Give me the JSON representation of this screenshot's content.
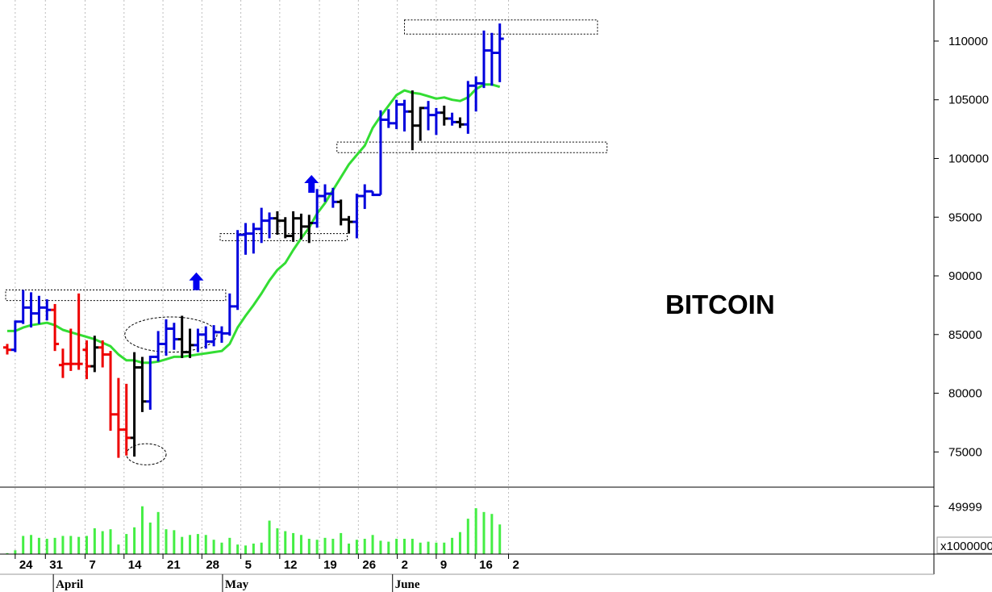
{
  "chart_data": {
    "type": "ohlc",
    "title": "BITCOIN",
    "price_axis": {
      "ticks": [
        "75000",
        "80000",
        "85000",
        "90000",
        "95000",
        "100000",
        "105000",
        "110000"
      ],
      "tick_values": [
        75000,
        80000,
        85000,
        90000,
        95000,
        100000,
        105000,
        110000
      ],
      "ylim": [
        72000,
        113500
      ]
    },
    "volume_axis": {
      "tick_label": "49999",
      "tick_value": 49999,
      "multiplier_label": "x1000000",
      "ylim": [
        0,
        70000
      ]
    },
    "x_axis": {
      "day_ticks": [
        {
          "label": "24",
          "index": 1
        },
        {
          "label": "31",
          "index": 4.8
        },
        {
          "label": "7",
          "index": 9.8
        },
        {
          "label": "14",
          "index": 14.7
        },
        {
          "label": "21",
          "index": 19.6
        },
        {
          "label": "28",
          "index": 24.5
        },
        {
          "label": "5",
          "index": 29.4
        },
        {
          "label": "12",
          "index": 34.3
        },
        {
          "label": "19",
          "index": 39.3
        },
        {
          "label": "26",
          "index": 44.2
        },
        {
          "label": "2",
          "index": 49.1
        },
        {
          "label": "9",
          "index": 54
        },
        {
          "label": "16",
          "index": 58.9
        },
        {
          "label": "2",
          "index": 63.1
        }
      ],
      "months": [
        {
          "label": "April",
          "index": 5.8
        },
        {
          "label": "May",
          "index": 27.1
        },
        {
          "label": "June",
          "index": 48.5
        }
      ],
      "index_range": [
        0,
        62.5
      ]
    },
    "series": [
      {
        "kind": "ohlc",
        "bars": [
          {
            "i": 0,
            "o": 83900,
            "h": 84200,
            "l": 83300,
            "c": 83700,
            "color": "red"
          },
          {
            "i": 1,
            "o": 83700,
            "h": 86200,
            "l": 83500,
            "c": 86100,
            "color": "blue"
          },
          {
            "i": 2,
            "o": 86100,
            "h": 88800,
            "l": 85900,
            "c": 87300,
            "color": "blue"
          },
          {
            "i": 3,
            "o": 87300,
            "h": 88600,
            "l": 85600,
            "c": 86800,
            "color": "blue"
          },
          {
            "i": 4,
            "o": 86800,
            "h": 88300,
            "l": 85900,
            "c": 87300,
            "color": "blue"
          },
          {
            "i": 5,
            "o": 87300,
            "h": 88000,
            "l": 86200,
            "c": 87100,
            "color": "blue"
          },
          {
            "i": 6,
            "o": 87100,
            "h": 87600,
            "l": 83600,
            "c": 84200,
            "color": "red"
          },
          {
            "i": 7,
            "o": 82400,
            "h": 83800,
            "l": 81300,
            "c": 82500,
            "color": "red"
          },
          {
            "i": 8,
            "o": 82500,
            "h": 85500,
            "l": 81900,
            "c": 82500,
            "color": "red"
          },
          {
            "i": 9,
            "o": 82500,
            "h": 88500,
            "l": 82000,
            "c": 82500,
            "color": "red"
          },
          {
            "i": 10,
            "o": 83700,
            "h": 84500,
            "l": 81200,
            "c": 82300,
            "color": "red"
          },
          {
            "i": 11,
            "o": 82300,
            "h": 84900,
            "l": 81800,
            "c": 83900,
            "color": "black"
          },
          {
            "i": 12,
            "o": 83900,
            "h": 84500,
            "l": 82200,
            "c": 83300,
            "color": "red"
          },
          {
            "i": 13,
            "o": 83300,
            "h": 83600,
            "l": 76800,
            "c": 78200,
            "color": "red"
          },
          {
            "i": 14,
            "o": 78200,
            "h": 81300,
            "l": 74500,
            "c": 76900,
            "color": "red"
          },
          {
            "i": 15,
            "o": 76900,
            "h": 80800,
            "l": 74700,
            "c": 76200,
            "color": "red"
          },
          {
            "i": 16,
            "o": 76200,
            "h": 83500,
            "l": 74600,
            "c": 82200,
            "color": "black"
          },
          {
            "i": 17,
            "o": 82200,
            "h": 83100,
            "l": 78400,
            "c": 79300,
            "color": "black"
          },
          {
            "i": 18,
            "o": 79300,
            "h": 83200,
            "l": 78600,
            "c": 83100,
            "color": "blue"
          },
          {
            "i": 19,
            "o": 83100,
            "h": 85300,
            "l": 82700,
            "c": 84200,
            "color": "blue"
          },
          {
            "i": 20,
            "o": 84200,
            "h": 86300,
            "l": 83200,
            "c": 85500,
            "color": "blue"
          },
          {
            "i": 21,
            "o": 85500,
            "h": 86000,
            "l": 83700,
            "c": 84600,
            "color": "blue"
          },
          {
            "i": 22,
            "o": 84600,
            "h": 86600,
            "l": 83000,
            "c": 83500,
            "color": "black"
          },
          {
            "i": 23,
            "o": 83500,
            "h": 85500,
            "l": 83000,
            "c": 84100,
            "color": "black"
          },
          {
            "i": 24,
            "o": 84100,
            "h": 85500,
            "l": 83500,
            "c": 85000,
            "color": "blue"
          },
          {
            "i": 25,
            "o": 85000,
            "h": 85700,
            "l": 83800,
            "c": 84400,
            "color": "blue"
          },
          {
            "i": 26,
            "o": 84400,
            "h": 85800,
            "l": 84000,
            "c": 85200,
            "color": "blue"
          },
          {
            "i": 27,
            "o": 85200,
            "h": 85700,
            "l": 84300,
            "c": 85100,
            "color": "blue"
          },
          {
            "i": 28,
            "o": 85100,
            "h": 88500,
            "l": 84900,
            "c": 87400,
            "color": "blue"
          },
          {
            "i": 29,
            "o": 87400,
            "h": 93900,
            "l": 87100,
            "c": 93500,
            "color": "blue"
          },
          {
            "i": 30,
            "o": 93500,
            "h": 94500,
            "l": 91800,
            "c": 93600,
            "color": "blue"
          },
          {
            "i": 31,
            "o": 93600,
            "h": 94500,
            "l": 91900,
            "c": 94000,
            "color": "blue"
          },
          {
            "i": 32,
            "o": 94000,
            "h": 95800,
            "l": 92800,
            "c": 94700,
            "color": "blue"
          },
          {
            "i": 33,
            "o": 94700,
            "h": 95400,
            "l": 93200,
            "c": 94900,
            "color": "blue"
          },
          {
            "i": 34,
            "o": 94900,
            "h": 95500,
            "l": 93500,
            "c": 94700,
            "color": "black"
          },
          {
            "i": 35,
            "o": 94700,
            "h": 95000,
            "l": 93200,
            "c": 93400,
            "color": "black"
          },
          {
            "i": 36,
            "o": 93400,
            "h": 95500,
            "l": 92900,
            "c": 94900,
            "color": "black"
          },
          {
            "i": 37,
            "o": 94900,
            "h": 95300,
            "l": 93100,
            "c": 94200,
            "color": "black"
          },
          {
            "i": 38,
            "o": 94200,
            "h": 95200,
            "l": 92800,
            "c": 94500,
            "color": "black"
          },
          {
            "i": 39,
            "o": 94500,
            "h": 97400,
            "l": 94100,
            "c": 96800,
            "color": "blue"
          },
          {
            "i": 40,
            "o": 96800,
            "h": 97800,
            "l": 96300,
            "c": 97000,
            "color": "blue"
          },
          {
            "i": 41,
            "o": 97000,
            "h": 97500,
            "l": 95800,
            "c": 96300,
            "color": "blue"
          },
          {
            "i": 42,
            "o": 96300,
            "h": 96500,
            "l": 94300,
            "c": 94800,
            "color": "black"
          },
          {
            "i": 43,
            "o": 94800,
            "h": 95100,
            "l": 93600,
            "c": 94600,
            "color": "black"
          },
          {
            "i": 44,
            "o": 94600,
            "h": 97000,
            "l": 93200,
            "c": 96800,
            "color": "blue"
          },
          {
            "i": 45,
            "o": 96800,
            "h": 97800,
            "l": 95700,
            "c": 97200,
            "color": "blue"
          },
          {
            "i": 46,
            "o": 97200,
            "h": 97200,
            "l": 96800,
            "c": 96900,
            "color": "blue"
          },
          {
            "i": 47,
            "o": 96900,
            "h": 104100,
            "l": 96900,
            "c": 103300,
            "color": "blue"
          },
          {
            "i": 48,
            "o": 103300,
            "h": 104200,
            "l": 102600,
            "c": 103000,
            "color": "blue"
          },
          {
            "i": 49,
            "o": 103000,
            "h": 105000,
            "l": 102500,
            "c": 104600,
            "color": "blue"
          },
          {
            "i": 50,
            "o": 104600,
            "h": 105000,
            "l": 102300,
            "c": 104000,
            "color": "blue"
          },
          {
            "i": 51,
            "o": 104000,
            "h": 105800,
            "l": 100700,
            "c": 102800,
            "color": "black"
          },
          {
            "i": 52,
            "o": 102800,
            "h": 104400,
            "l": 101500,
            "c": 104300,
            "color": "black"
          },
          {
            "i": 53,
            "o": 104300,
            "h": 104900,
            "l": 102400,
            "c": 103700,
            "color": "blue"
          },
          {
            "i": 54,
            "o": 103700,
            "h": 104300,
            "l": 102000,
            "c": 103900,
            "color": "blue"
          },
          {
            "i": 55,
            "o": 103900,
            "h": 104500,
            "l": 102800,
            "c": 103400,
            "color": "black"
          },
          {
            "i": 56,
            "o": 103400,
            "h": 103900,
            "l": 102800,
            "c": 103100,
            "color": "blue"
          },
          {
            "i": 57,
            "o": 103100,
            "h": 103500,
            "l": 102600,
            "c": 102900,
            "color": "black"
          },
          {
            "i": 58,
            "o": 102900,
            "h": 106600,
            "l": 102100,
            "c": 106200,
            "color": "blue"
          },
          {
            "i": 59,
            "o": 106200,
            "h": 107000,
            "l": 104000,
            "c": 106400,
            "color": "blue"
          },
          {
            "i": 60,
            "o": 106400,
            "h": 110900,
            "l": 106000,
            "c": 109200,
            "color": "blue"
          },
          {
            "i": 61,
            "o": 109200,
            "h": 110700,
            "l": 106200,
            "c": 109000,
            "color": "blue"
          },
          {
            "i": 62,
            "o": 109000,
            "h": 111500,
            "l": 106500,
            "c": 110200,
            "color": "blue"
          }
        ]
      },
      {
        "kind": "moving_average",
        "color": "#33dd33",
        "values": [
          85300,
          85300,
          85600,
          85800,
          85900,
          86000,
          85800,
          85400,
          85200,
          85000,
          84800,
          84600,
          84300,
          84000,
          83300,
          82800,
          82800,
          82600,
          82600,
          82700,
          82900,
          83100,
          83100,
          83200,
          83300,
          83400,
          83500,
          83600,
          84200,
          85600,
          86600,
          87500,
          88500,
          89600,
          90500,
          91100,
          92200,
          93200,
          94100,
          95300,
          96200,
          97300,
          98400,
          99500,
          100300,
          101100,
          102600,
          103600,
          104500,
          105400,
          105800,
          105600,
          105500,
          105300,
          105100,
          105200,
          105000,
          104900,
          105200,
          105900,
          106300,
          106300,
          106100
        ]
      }
    ],
    "volume": [
      1000,
      4000,
      19000,
      20000,
      17000,
      16000,
      17000,
      19000,
      19000,
      18000,
      19000,
      27000,
      24000,
      26000,
      10000,
      21000,
      28000,
      50000,
      33000,
      44000,
      26000,
      25000,
      18000,
      20000,
      21000,
      20000,
      15000,
      12000,
      17000,
      10000,
      9000,
      11000,
      12000,
      35000,
      27000,
      24000,
      22000,
      20000,
      16000,
      15000,
      17000,
      16000,
      22000,
      11000,
      15000,
      16000,
      20000,
      14000,
      13000,
      16000,
      16000,
      16000,
      12000,
      13000,
      12000,
      12000,
      17000,
      23000,
      37000,
      48000,
      44000,
      42000,
      31000
    ],
    "reference_boxes": [
      {
        "price_low": 87900,
        "price_high": 88800,
        "i_start": -0.2,
        "i_end": 27.5
      },
      {
        "price_low": 93000,
        "price_high": 93600,
        "i_start": 26.8,
        "i_end": 42.8
      },
      {
        "price_low": 100500,
        "price_high": 101400,
        "i_start": 41.5,
        "i_end": 75.5
      },
      {
        "price_low": 110600,
        "price_high": 111800,
        "i_start": 50.0,
        "i_end": 74.3
      }
    ],
    "ellipses": [
      {
        "i_center": 17.5,
        "price_center": 74800,
        "i_radius": 2.5,
        "price_radius": 900
      },
      {
        "i_center": 20.6,
        "price_center": 85000,
        "i_radius": 5.8,
        "price_radius": 1500
      }
    ],
    "arrows": [
      {
        "i": 23.8,
        "price": 89400
      },
      {
        "i": 38.3,
        "price": 97700
      }
    ]
  }
}
